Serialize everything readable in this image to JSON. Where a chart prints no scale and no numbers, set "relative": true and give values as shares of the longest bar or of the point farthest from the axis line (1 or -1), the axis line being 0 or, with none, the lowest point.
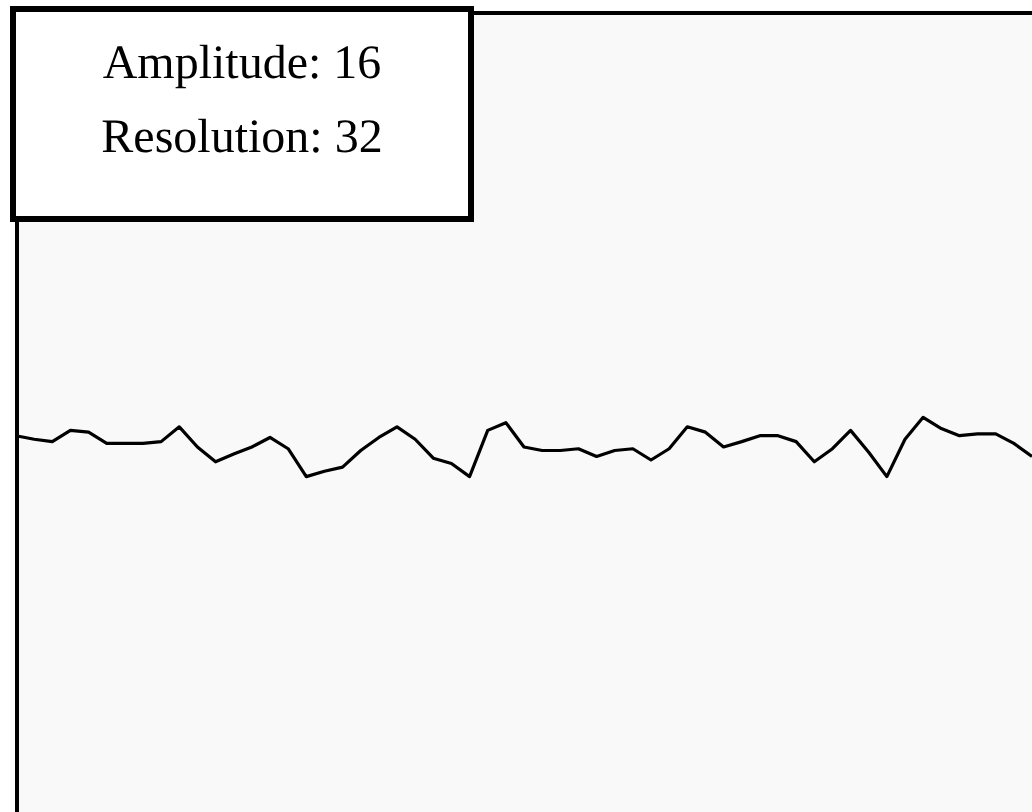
{
  "chart_data": {
    "type": "line",
    "relative": true,
    "categories": [
      null,
      null,
      null,
      null,
      null,
      null,
      null,
      null,
      null,
      null,
      null,
      null,
      null,
      null,
      null,
      null,
      null,
      null,
      null,
      null,
      null,
      null,
      null,
      null,
      null,
      null,
      null,
      null,
      null,
      null,
      null,
      null,
      null,
      null,
      null,
      null,
      null,
      null,
      null,
      null,
      null,
      null,
      null,
      null,
      null,
      null,
      null,
      null,
      null,
      null,
      null,
      null,
      null,
      null,
      null,
      null,
      null
    ],
    "series": [
      {
        "color": "#000000",
        "values": [
          0.69,
          0.63,
          0.59,
          0.78,
          0.75,
          0.56,
          0.56,
          0.56,
          0.59,
          0.84,
          0.5,
          0.25,
          0.38,
          0.5,
          0.66,
          0.47,
          0,
          0.09,
          0.16,
          0.44,
          0.66,
          0.84,
          0.63,
          0.31,
          0.22,
          0,
          0.78,
          0.91,
          0.5,
          0.44,
          0.44,
          0.47,
          0.34,
          0.44,
          0.47,
          0.28,
          0.47,
          0.84,
          0.75,
          0.5,
          0.59,
          0.69,
          0.69,
          0.59,
          0.25,
          0.47,
          0.78,
          0.41,
          0,
          0.63,
          1,
          0.81,
          0.69,
          0.72,
          0.72,
          0.56,
          0.34
        ]
      }
    ],
    "annotations": [
      "Amplitude: 16",
      "Resolution: 32"
    ]
  }
}
